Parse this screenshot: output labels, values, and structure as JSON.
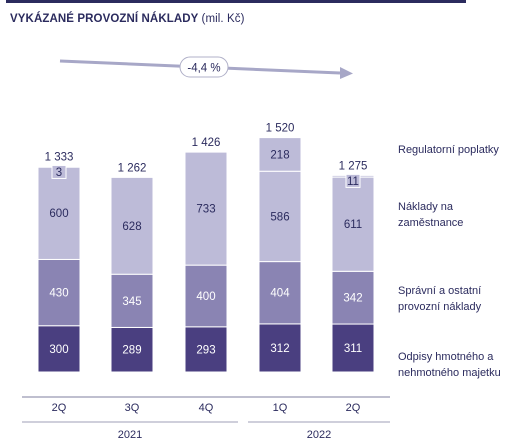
{
  "title": "VYKÁZANÉ PROVOZNÍ NÁKLADY",
  "unit": "(mil. Kč)",
  "trend_label": "-4,4 %",
  "colors": {
    "depreciation": "#4a3f80",
    "admin": "#8a84b3",
    "staff": "#bdbbd8",
    "regulatory_outline": "#2b2b5e",
    "text_dark": "#2b2b5e",
    "text_light": "#ffffff",
    "axis": "#7f7f9f",
    "trend_arrow": "#a7a7c7"
  },
  "chart_data": {
    "type": "bar",
    "stacked": true,
    "categories": [
      "2Q",
      "3Q",
      "4Q",
      "1Q",
      "2Q"
    ],
    "years": [
      {
        "label": "2021",
        "categories": [
          "2Q",
          "3Q",
          "4Q"
        ]
      },
      {
        "label": "2022",
        "categories": [
          "1Q",
          "2Q"
        ]
      }
    ],
    "totals": [
      "1 333",
      "1 262",
      "1 426",
      "1 520",
      "1 275"
    ],
    "total_values": [
      1333,
      1262,
      1426,
      1520,
      1275
    ],
    "series": [
      {
        "name": "Odpisy hmotného a nehmotného majetku",
        "values": [
          300,
          289,
          293,
          312,
          311
        ]
      },
      {
        "name": "Správní a ostatní provozní náklady",
        "values": [
          430,
          345,
          400,
          404,
          342
        ]
      },
      {
        "name": "Náklady na zaměstnance",
        "values": [
          600,
          628,
          733,
          586,
          611
        ]
      },
      {
        "name": "Regulatorní poplatky",
        "values": [
          3,
          null,
          null,
          218,
          11
        ]
      }
    ],
    "ylim": [
      0,
      1520
    ]
  },
  "legend": [
    {
      "label": "Regulatorní poplatky"
    },
    {
      "label": "Náklady na zaměstnance"
    },
    {
      "label": "Správní a ostatní provozní náklady"
    },
    {
      "label": "Odpisy hmotného a nehmotného majetku"
    }
  ]
}
